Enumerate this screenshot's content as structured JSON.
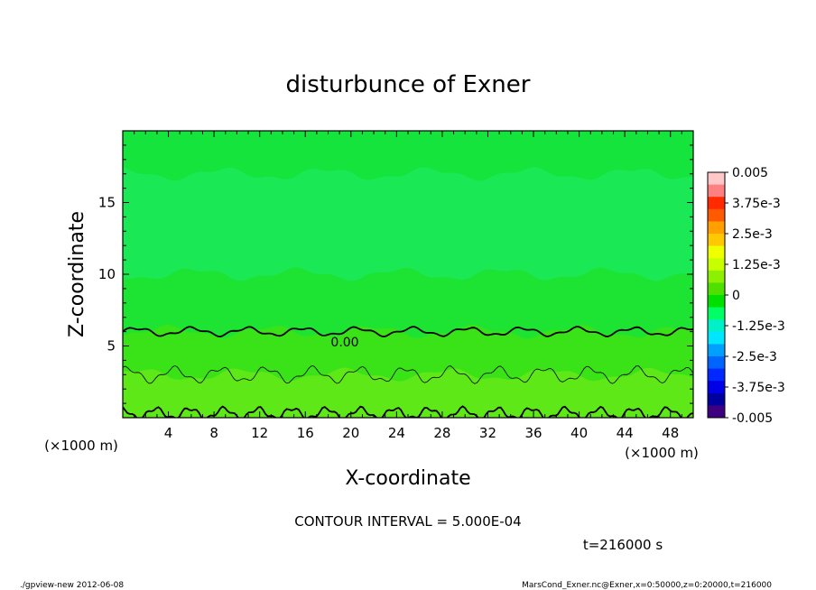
{
  "chart_data": {
    "type": "heatmap",
    "title": "disturbunce of Exner",
    "xlabel": "X-coordinate",
    "ylabel": "Z-coordinate",
    "x_unit_left": "(×1000 m)",
    "x_unit_right": "(×1000 m)",
    "xlim": [
      0,
      50
    ],
    "ylim": [
      0,
      20
    ],
    "x_ticks": [
      4,
      8,
      12,
      16,
      20,
      24,
      28,
      32,
      36,
      40,
      44,
      48
    ],
    "y_ticks": [
      5,
      10,
      15
    ],
    "colorbar": {
      "labels": [
        "0.005",
        "3.75e-3",
        "2.5e-3",
        "1.25e-3",
        "0",
        "-1.25e-3",
        "-2.5e-3",
        "-3.75e-3",
        "-0.005"
      ],
      "label_values": [
        0.005,
        0.00375,
        0.0025,
        0.00125,
        0,
        -0.00125,
        -0.0025,
        -0.00375,
        -0.005
      ],
      "colors_top_to_bottom": [
        "#ffc8c8",
        "#ff8080",
        "#ff2a00",
        "#ff5a00",
        "#ffa000",
        "#ffc800",
        "#f0ff00",
        "#c8ff00",
        "#8cf000",
        "#50e000",
        "#00e000",
        "#00ff64",
        "#00f0c8",
        "#00e6ff",
        "#00a0ff",
        "#0064ff",
        "#0028ff",
        "#0000e6",
        "#0000a0",
        "#3c0080"
      ]
    },
    "bands": [
      {
        "z_range": [
          17.0,
          20.0
        ],
        "value": -0.00025,
        "color": "#14e43c"
      },
      {
        "z_range": [
          10.0,
          17.0
        ],
        "value": -0.0005,
        "color": "#1ae854"
      },
      {
        "z_range": [
          6.0,
          10.0
        ],
        "value": -0.00025,
        "color": "#1de332"
      },
      {
        "z_range": [
          3.0,
          6.0
        ],
        "value": 0.00025,
        "color": "#3ae218"
      },
      {
        "z_range": [
          0,
          3.0
        ],
        "value": 0.0005,
        "color": "#5ee818"
      }
    ],
    "contours": [
      {
        "level": 0.0,
        "label": "0.00",
        "mean_z": 6.0,
        "style": "thick"
      },
      {
        "level": 0.0005,
        "mean_z": 3.0,
        "style": "thin"
      },
      {
        "level": 0.001,
        "mean_z": 0.3,
        "style": "thick"
      }
    ],
    "contour_interval_text": "CONTOUR INTERVAL = 5.000E-04",
    "time_text": "t=216000 s"
  },
  "footer": {
    "left": "./gpview-new   2012-06-08",
    "right": "MarsCond_Exner.nc@Exner,x=0:50000,z=0:20000,t=216000"
  }
}
